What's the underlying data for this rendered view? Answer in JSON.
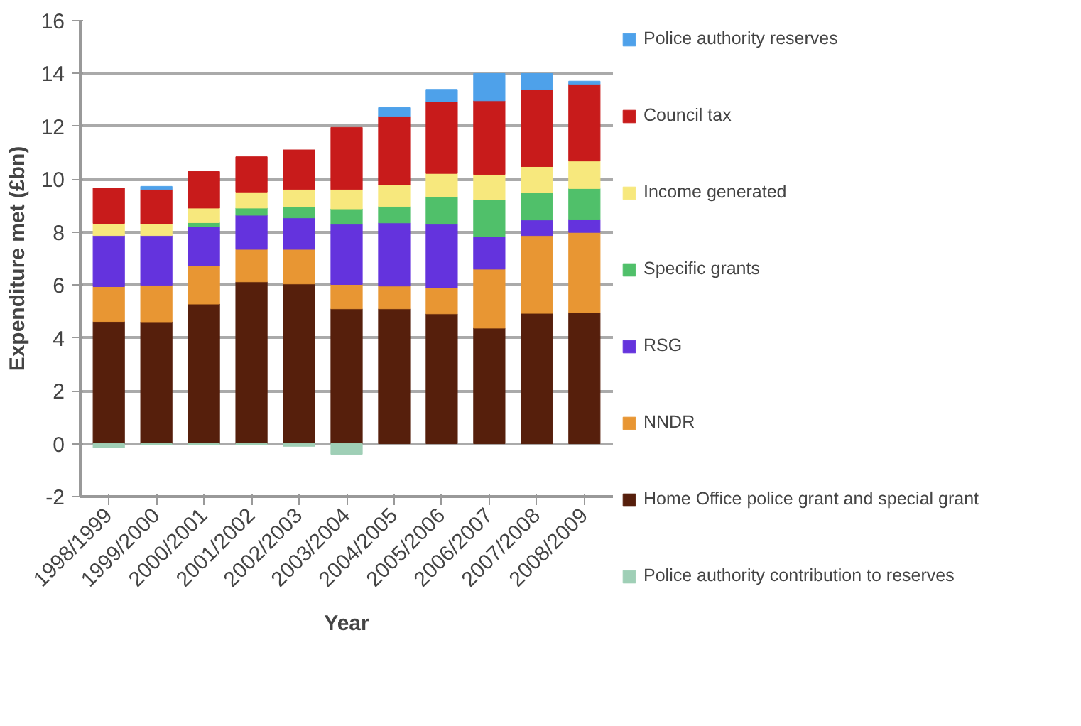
{
  "chart_data": {
    "type": "bar",
    "stacked": true,
    "xlabel": "Year",
    "ylabel": "Expenditure met (£bn)",
    "categories": [
      "1998/1999",
      "1999/2000",
      "2000/2001",
      "2001/2002",
      "2002/2003",
      "2003/2004",
      "2004/2005",
      "2005/2006",
      "2006/2007",
      "2007/2008",
      "2008/2009"
    ],
    "ylim": [
      -2,
      16
    ],
    "yticks": [
      -2,
      0,
      2,
      4,
      6,
      8,
      10,
      12,
      14,
      16
    ],
    "grid": "y",
    "legend": "right",
    "series": [
      {
        "name": "Home Office police grant and special grant",
        "color": "#561f0c",
        "values": [
          4.62,
          4.61,
          5.28,
          6.12,
          6.04,
          5.1,
          5.1,
          4.91,
          4.37,
          4.93,
          4.96
        ]
      },
      {
        "name": "NNDR",
        "color": "#e89633",
        "values": [
          1.32,
          1.38,
          1.45,
          1.23,
          1.31,
          0.92,
          0.86,
          0.98,
          2.23,
          2.94,
          3.03
        ]
      },
      {
        "name": "RSG",
        "color": "#6433dd",
        "values": [
          1.93,
          1.88,
          1.47,
          1.29,
          1.19,
          2.28,
          2.39,
          2.41,
          1.22,
          0.59,
          0.5
        ]
      },
      {
        "name": "Specific grants",
        "color": "#50c06a",
        "values": [
          null,
          null,
          0.16,
          0.27,
          0.42,
          0.58,
          0.62,
          1.04,
          1.41,
          1.04,
          1.16
        ]
      },
      {
        "name": "Income generated",
        "color": "#f7e87d",
        "values": [
          0.46,
          0.44,
          0.55,
          0.61,
          0.65,
          0.73,
          0.82,
          0.88,
          0.95,
          0.98,
          1.04
        ]
      },
      {
        "name": "Council tax",
        "color": "#c81b1b",
        "values": [
          1.33,
          1.3,
          1.38,
          1.33,
          1.5,
          2.35,
          2.59,
          2.72,
          2.79,
          2.91,
          2.91
        ]
      },
      {
        "name": "Police authority reserves",
        "color": "#4ea1ea",
        "values": [
          null,
          0.12,
          null,
          null,
          null,
          null,
          0.33,
          0.46,
          1.03,
          0.61,
          0.11
        ]
      },
      {
        "name": "Police authority contribution to reserves",
        "color": "#9fcfb6",
        "values": [
          -0.15,
          -0.05,
          -0.05,
          -0.05,
          -0.1,
          -0.4,
          null,
          null,
          null,
          null,
          null
        ]
      }
    ]
  }
}
